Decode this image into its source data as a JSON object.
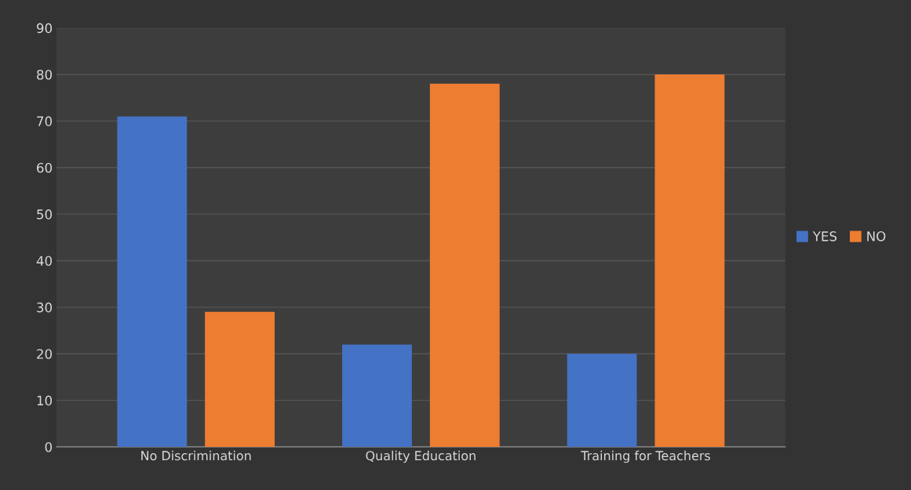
{
  "chart_data": {
    "type": "bar",
    "categories": [
      "No Discrimination",
      "Quality Education",
      "Training for Teachers"
    ],
    "series": [
      {
        "name": "YES",
        "color": "#4472c4",
        "values": [
          71,
          22,
          20
        ]
      },
      {
        "name": "NO",
        "color": "#ed7d31",
        "values": [
          29,
          78,
          80
        ]
      }
    ],
    "ylim": [
      0,
      90
    ],
    "yticks": [
      0,
      10,
      20,
      30,
      40,
      50,
      60,
      70,
      80,
      90
    ],
    "grid": "y",
    "legend": "right"
  }
}
